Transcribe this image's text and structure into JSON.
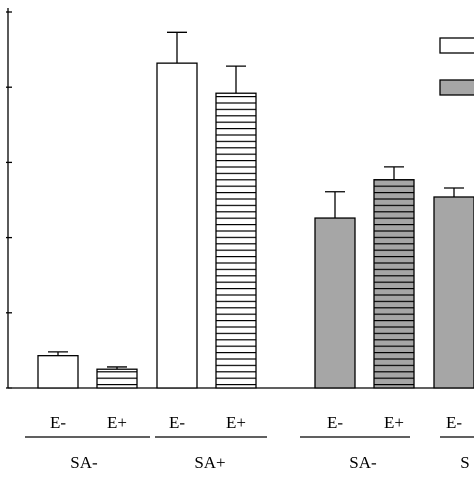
{
  "chart_data": {
    "type": "bar",
    "title": "",
    "xlabel": "",
    "ylabel": "",
    "ylim": [
      0,
      5
    ],
    "grid": false,
    "legend": "top-right (cropped; entry labels not visible)",
    "bars": [
      {
        "group": "SA-",
        "label": "E-",
        "value": 0.43,
        "error": 0.05,
        "fill": "white",
        "pattern": "none"
      },
      {
        "group": "SA-",
        "label": "E+",
        "value": 0.25,
        "error": 0.03,
        "fill": "white",
        "pattern": "horizontal-lines"
      },
      {
        "group": "SA+",
        "label": "E-",
        "value": 4.32,
        "error": 0.41,
        "fill": "white",
        "pattern": "none"
      },
      {
        "group": "SA+",
        "label": "E+",
        "value": 3.92,
        "error": 0.36,
        "fill": "white",
        "pattern": "horizontal-lines"
      },
      {
        "group": "SA-",
        "label": "E-",
        "value": 2.26,
        "error": 0.35,
        "fill": "gray",
        "pattern": "none"
      },
      {
        "group": "SA-",
        "label": "E+",
        "value": 2.77,
        "error": 0.17,
        "fill": "gray",
        "pattern": "horizontal-lines"
      },
      {
        "group": "S",
        "label": "E-",
        "value": 2.54,
        "error": 0.12,
        "fill": "gray",
        "pattern": "none"
      }
    ],
    "group_labels": [
      "SA-",
      "SA+",
      "SA-",
      "S"
    ],
    "legend_entries": [
      {
        "fill": "white"
      },
      {
        "fill": "gray"
      }
    ],
    "colors": {
      "open_bar": "#ffffff",
      "gray_bar": "#a6a6a6",
      "stroke": "#000000",
      "stripe": "#000000"
    }
  }
}
